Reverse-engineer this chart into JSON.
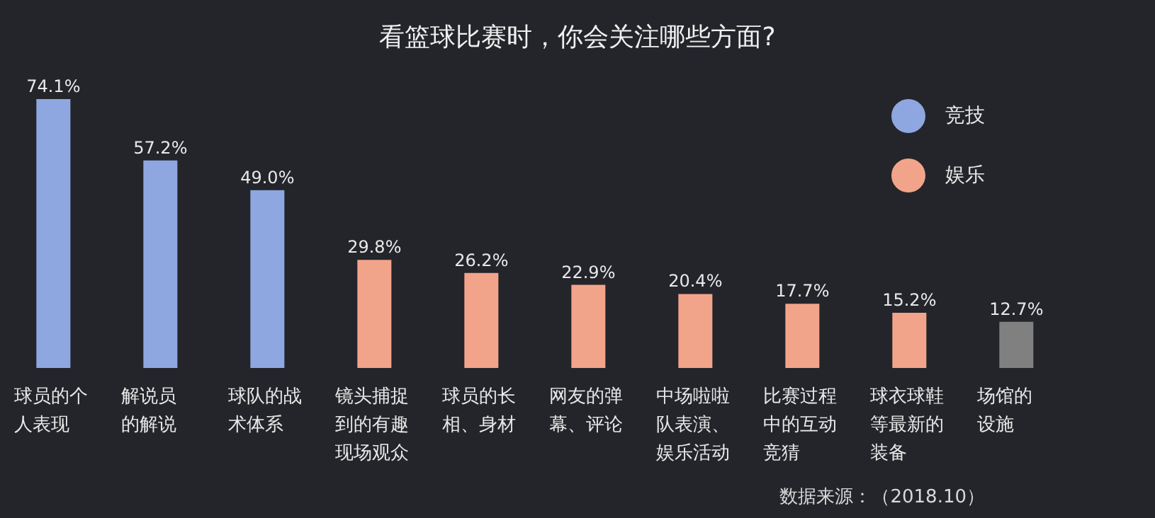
{
  "chart_data": {
    "type": "bar",
    "title": "看篮球比赛时，你会关注哪些方面?",
    "categories": [
      "球员的个人表现",
      "解说员的解说",
      "球队的战术体系",
      "镜头捕捉到的有趣现场观众",
      "球员的长相、身材",
      "网友的弹幕、评论",
      "中场啦啦队表演、娱乐活动",
      "比赛过程中的互动竞猜",
      "球衣球鞋等最新的装备",
      "场馆的设施"
    ],
    "series": [
      {
        "name": "竞技",
        "color": "#8fa7e0",
        "values": [
          74.1,
          57.2,
          49.0,
          null,
          null,
          null,
          null,
          null,
          null,
          null
        ],
        "value_labels": [
          "74.1%",
          "57.2%",
          "49.0%",
          null,
          null,
          null,
          null,
          null,
          null,
          null
        ]
      },
      {
        "name": "娱乐",
        "color": "#f2a48a",
        "values": [
          null,
          null,
          null,
          29.8,
          26.2,
          22.9,
          20.4,
          17.7,
          15.2,
          null
        ],
        "value_labels": [
          null,
          null,
          null,
          "29.8%",
          "26.2%",
          "22.9%",
          "20.4%",
          "17.7%",
          "15.2%",
          null
        ]
      },
      {
        "color": "#808080",
        "values": [
          null,
          null,
          null,
          null,
          null,
          null,
          null,
          null,
          null,
          12.7
        ],
        "value_labels": [
          null,
          null,
          null,
          null,
          null,
          null,
          null,
          null,
          null,
          "12.7%"
        ]
      }
    ],
    "stacked": true,
    "legend": "top right",
    "grid": false,
    "annotations": [
      "数据来源：（2018.10）"
    ]
  }
}
